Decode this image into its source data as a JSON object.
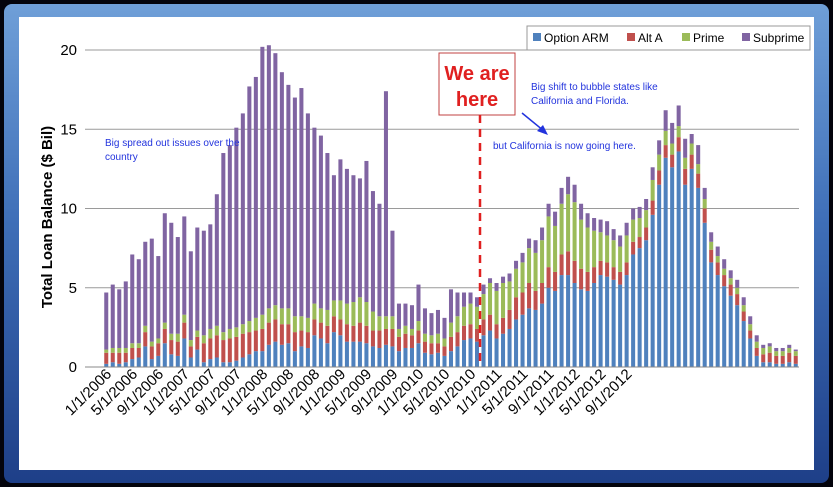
{
  "chart_data": {
    "type": "bar",
    "stacked": true,
    "ylabel": "Total Loan Balance ($ Bil)",
    "ylim": [
      0,
      20
    ],
    "yticks": [
      0,
      5,
      10,
      15,
      20
    ],
    "grid": true,
    "legend_position": "top-right",
    "xtick_labels": [
      "1/1/2006",
      "5/1/2006",
      "9/1/2006",
      "1/1/2007",
      "5/1/2007",
      "9/1/2007",
      "1/1/2008",
      "5/1/2008",
      "9/1/2008",
      "1/1/2009",
      "5/1/2009",
      "9/1/2009",
      "1/1/2010",
      "5/1/2010",
      "9/1/2010",
      "1/1/2011",
      "5/1/2011",
      "9/1/2011",
      "1/1/2012",
      "5/1/2012",
      "9/1/2012"
    ],
    "series": [
      {
        "name": "Option ARM",
        "color": "#4f81bd",
        "values": [
          0.2,
          0.3,
          0.2,
          0.3,
          0.5,
          0.6,
          1.3,
          0.5,
          0.7,
          1.5,
          0.8,
          0.7,
          1.8,
          0.6,
          1.1,
          0.3,
          0.5,
          0.6,
          0.3,
          0.3,
          0.4,
          0.6,
          0.8,
          1.0,
          1.0,
          1.4,
          1.6,
          1.4,
          1.5,
          1.0,
          1.3,
          1.2,
          2.0,
          1.8,
          1.5,
          2.2,
          2.0,
          1.6,
          1.6,
          1.6,
          1.5,
          1.3,
          1.2,
          1.4,
          1.3,
          1.0,
          1.2,
          1.2,
          1.5,
          0.9,
          0.8,
          0.9,
          0.7,
          1.0,
          1.3,
          1.7,
          1.8,
          1.6,
          2.0,
          2.3,
          1.8,
          2.1,
          2.4,
          3.0,
          3.3,
          3.7,
          3.6,
          4.0,
          5.0,
          4.8,
          5.8,
          5.8,
          5.3,
          4.9,
          4.8,
          5.3,
          5.8,
          5.7,
          5.5,
          5.2,
          5.8,
          7.1,
          7.5,
          8.0,
          9.6,
          11.5,
          13.2,
          12.6,
          13.6,
          11.5,
          12.5,
          11.3,
          9.1,
          6.6,
          5.8,
          5.1,
          4.5,
          3.9,
          2.9,
          1.8,
          0.7,
          0.3,
          0.3,
          0.2,
          0.2,
          0.3,
          0.2
        ]
      },
      {
        "name": "Alt A",
        "color": "#c0504d",
        "values": [
          0.7,
          0.6,
          0.7,
          0.6,
          0.7,
          0.6,
          0.9,
          0.8,
          0.8,
          0.9,
          0.9,
          0.9,
          1.0,
          0.7,
          0.8,
          1.2,
          1.3,
          1.4,
          1.4,
          1.5,
          1.5,
          1.5,
          1.4,
          1.3,
          1.4,
          1.4,
          1.4,
          1.3,
          1.2,
          1.2,
          1.0,
          1.0,
          1.0,
          1.0,
          1.1,
          1.0,
          1.0,
          1.1,
          1.0,
          1.2,
          1.1,
          1.0,
          1.1,
          1.0,
          1.1,
          0.9,
          0.9,
          0.8,
          0.8,
          0.7,
          0.7,
          0.6,
          0.6,
          0.9,
          0.9,
          0.9,
          0.9,
          0.8,
          1.0,
          1.0,
          0.9,
          1.0,
          1.2,
          1.4,
          1.4,
          1.6,
          1.2,
          1.3,
          1.3,
          1.2,
          1.3,
          1.5,
          1.4,
          1.3,
          1.2,
          1.0,
          0.9,
          0.9,
          0.8,
          0.8,
          0.8,
          0.8,
          0.7,
          0.8,
          0.9,
          0.9,
          0.8,
          0.8,
          0.9,
          1.0,
          0.9,
          0.9,
          0.9,
          0.8,
          0.8,
          0.7,
          0.7,
          0.7,
          0.6,
          0.5,
          0.5,
          0.5,
          0.6,
          0.5,
          0.5,
          0.6,
          0.5
        ]
      },
      {
        "name": "Prime",
        "color": "#9bbb59",
        "values": [
          0.2,
          0.3,
          0.3,
          0.3,
          0.3,
          0.3,
          0.4,
          0.3,
          0.3,
          0.4,
          0.4,
          0.5,
          0.5,
          0.4,
          0.4,
          0.5,
          0.6,
          0.6,
          0.5,
          0.6,
          0.6,
          0.6,
          0.7,
          0.8,
          0.9,
          0.9,
          0.9,
          1.0,
          1.0,
          1.0,
          0.9,
          0.9,
          1.0,
          0.9,
          1.0,
          1.0,
          1.2,
          1.3,
          1.5,
          1.6,
          1.5,
          1.2,
          0.9,
          0.8,
          0.8,
          0.5,
          0.5,
          0.4,
          0.6,
          0.5,
          0.5,
          0.6,
          0.5,
          0.9,
          1.0,
          1.2,
          1.3,
          1.4,
          1.6,
          2.0,
          2.1,
          2.2,
          1.8,
          1.8,
          1.9,
          2.2,
          2.4,
          2.7,
          3.2,
          2.9,
          3.2,
          3.6,
          3.7,
          3.1,
          2.8,
          2.3,
          1.8,
          1.7,
          1.7,
          1.6,
          1.7,
          1.4,
          1.2,
          1.1,
          1.3,
          1.0,
          0.9,
          0.7,
          0.7,
          0.7,
          0.7,
          0.6,
          0.6,
          0.5,
          0.4,
          0.4,
          0.4,
          0.4,
          0.4,
          0.4,
          0.4,
          0.4,
          0.4,
          0.3,
          0.3,
          0.3,
          0.3
        ]
      },
      {
        "name": "Subprime",
        "color": "#8064a2",
        "values": [
          3.6,
          4.0,
          3.7,
          4.2,
          5.6,
          5.3,
          5.3,
          6.5,
          5.2,
          6.9,
          7.0,
          6.1,
          6.2,
          5.6,
          6.5,
          6.6,
          6.6,
          8.3,
          11.3,
          11.6,
          12.6,
          13.3,
          14.8,
          15.2,
          16.9,
          16.6,
          15.9,
          14.9,
          14.1,
          13.8,
          14.4,
          12.9,
          11.1,
          10.9,
          9.9,
          7.9,
          8.9,
          8.5,
          8.0,
          7.5,
          8.9,
          7.6,
          7.1,
          14.2,
          5.4,
          1.6,
          1.4,
          1.5,
          2.3,
          1.6,
          1.4,
          1.5,
          1.3,
          2.1,
          1.5,
          0.9,
          0.7,
          0.6,
          0.6,
          0.3,
          0.5,
          0.4,
          0.5,
          0.5,
          0.6,
          0.6,
          0.8,
          0.8,
          0.8,
          0.9,
          1.0,
          1.1,
          1.1,
          1.0,
          0.9,
          0.8,
          0.8,
          0.9,
          0.7,
          0.7,
          0.8,
          0.7,
          0.7,
          0.7,
          0.8,
          0.9,
          1.3,
          1.3,
          1.3,
          1.2,
          0.6,
          1.2,
          0.7,
          0.6,
          0.6,
          0.6,
          0.5,
          0.5,
          0.5,
          0.5,
          0.4,
          0.2,
          0.2,
          0.2,
          0.2,
          0.2,
          0.1
        ]
      }
    ],
    "annotations": {
      "left_note": [
        "Big spread out issues over the",
        "country"
      ],
      "right_note": [
        "Big shift to bubble states like",
        "California and Florida."
      ],
      "california_note": "but California is now going here.",
      "callout": [
        "We are",
        "here"
      ]
    }
  }
}
